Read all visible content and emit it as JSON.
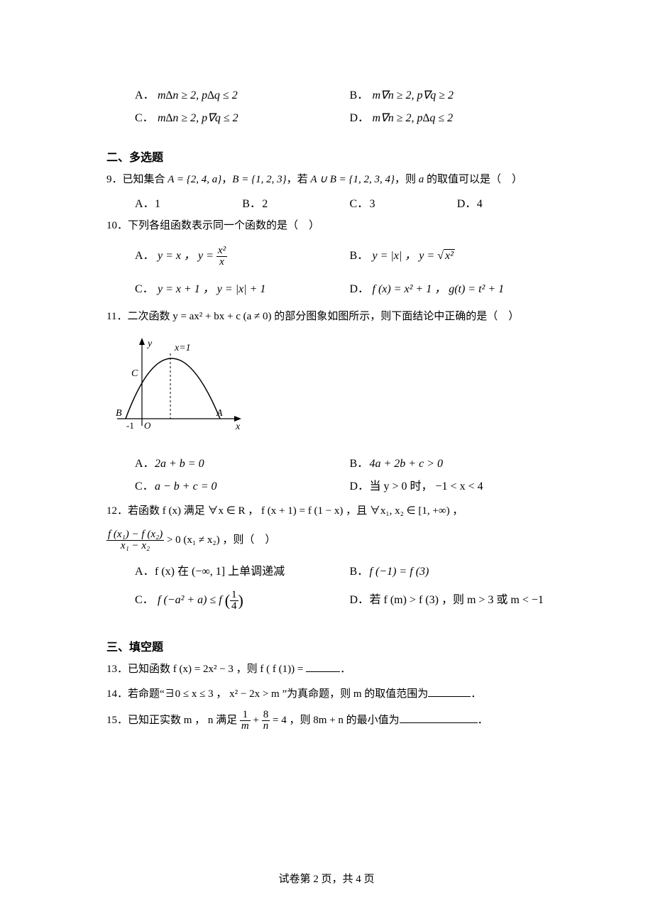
{
  "footer": "试卷第 2 页，共 4 页",
  "q8": {
    "A": {
      "label": "A．",
      "expr": "m∆n ≥ 2, p∆q ≤ 2"
    },
    "B": {
      "label": "B．",
      "expr": "m∇n ≥ 2, p∇q ≥ 2"
    },
    "C": {
      "label": "C．",
      "expr": "m∆n ≥ 2, p∇q ≤ 2"
    },
    "D": {
      "label": "D．",
      "expr": "m∇n ≥ 2, p∆q ≤ 2"
    }
  },
  "section2": "二、多选题",
  "q9": {
    "stem_parts": [
      "9．已知集合 ",
      "A = {2, 4, a}",
      "，",
      "B = {1, 2, 3}",
      "，若 ",
      "A ∪ B = {1, 2, 3, 4}",
      "，则 ",
      "a",
      " 的取值可以是（　）"
    ],
    "A": {
      "label": "A．",
      "val": "1"
    },
    "B": {
      "label": "B．",
      "val": "2"
    },
    "C": {
      "label": "C．",
      "val": "3"
    },
    "D": {
      "label": "D．",
      "val": "4"
    }
  },
  "q10": {
    "stem": "10．下列各组函数表示同一个函数的是（　）",
    "A": {
      "label": "A．",
      "pre": "y = x ，  y = ",
      "num": "x²",
      "den": "x"
    },
    "B": {
      "label": "B．",
      "pre": "y = |x| ，  y = ",
      "rad": "x²"
    },
    "C": {
      "label": "C．",
      "txt": "y = x + 1 ，  y = |x| + 1"
    },
    "D": {
      "label": "D．",
      "txt": "f (x) = x² + 1 ，  g(t) = t² + 1"
    }
  },
  "q11": {
    "stem": "11．二次函数 y = ax² + bx + c (a ≠ 0) 的部分图象如图所示，则下面结论中正确的是（　）",
    "figure": {
      "y_label": "y",
      "x_label": "x",
      "A": "A",
      "B": "B",
      "C": "C",
      "O": "O",
      "neg1": "-1",
      "x1": "x=1",
      "axis_color": "#000000",
      "curve_color": "#000000",
      "dash_color": "#000000"
    },
    "A": {
      "label": "A．",
      "txt": "2a + b = 0"
    },
    "B": {
      "label": "B．",
      "txt": "4a + 2b + c > 0"
    },
    "C": {
      "label": "C．",
      "txt": "a − b + c = 0"
    },
    "D": {
      "label": "D．",
      "txt": "当 y > 0 时， −1 < x < 4"
    }
  },
  "q12": {
    "stem_line1": "12．若函数 f (x) 满足 ∀x ∈ R ， f (x + 1) = f (1 − x) ，且 ∀x₁, x₂ ∈ [1, +∞) ，",
    "frac_num": "f (x₁) − f (x₂)",
    "frac_den": "x₁ − x₂",
    "tail": " > 0 (x₁ ≠ x₂) ，则（　）",
    "A": {
      "label": "A．",
      "txt": "f (x) 在 (−∞, 1] 上单调递减"
    },
    "B": {
      "label": "B．",
      "txt": "f (−1) = f (3)"
    },
    "C": {
      "label": "C．",
      "pre": "f (−a² + a) ≤ f ",
      "num": "1",
      "den": "4"
    },
    "D": {
      "label": "D．",
      "txt": "若 f (m) > f (3) ，则 m > 3 或 m < −1"
    }
  },
  "section3": "三、填空题",
  "q13": {
    "pre": "13．已知函数 f (x) = 2x² − 3 ，则 f ( f (1)) = ",
    "post": "．",
    "blank_width": 48
  },
  "q14": {
    "pre": "14．若命题“∃0 ≤ x ≤ 3 ， x² − 2x > m ”为真命题，则 m 的取值范围为",
    "post": "．",
    "blank_width": 60
  },
  "q15": {
    "pre": "15．已知正实数 m ， n 满足 ",
    "frac1_num": "1",
    "frac1_den": "m",
    "plus": " + ",
    "frac2_num": "8",
    "frac2_den": "n",
    "mid": " = 4 ，则 8m + n 的最小值为",
    "post": "．",
    "blank_width": 110
  }
}
